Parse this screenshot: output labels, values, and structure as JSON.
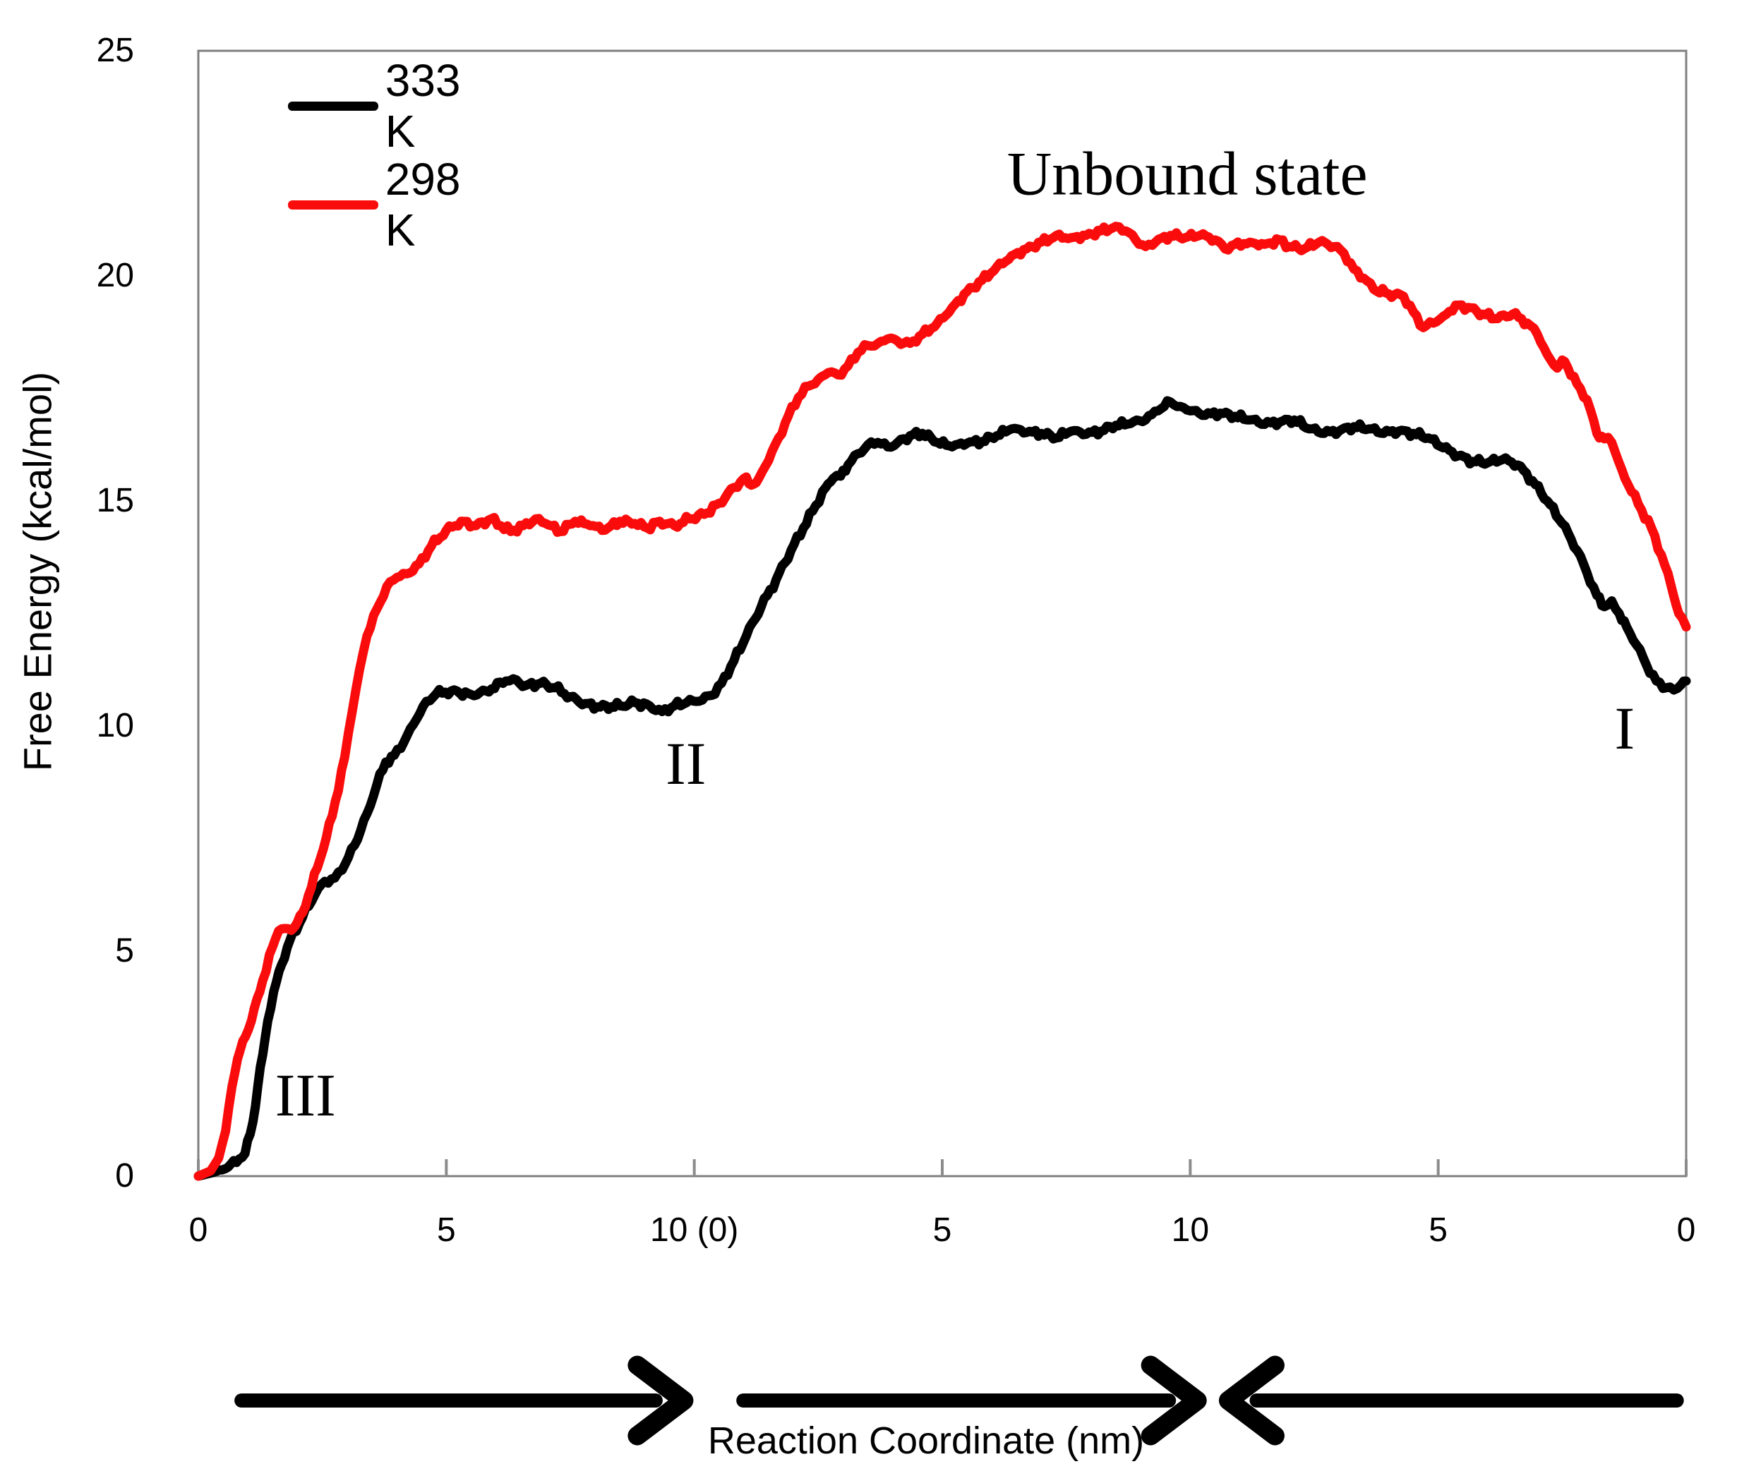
{
  "chart_data": {
    "type": "line",
    "xlabel": "Reaction Coordinate (nm)",
    "ylabel": "Free Energy (kcal/mol)",
    "ylim": [
      0,
      25
    ],
    "x_combined_range": [
      0,
      30
    ],
    "x_axis_note": "piecewise reaction-coordinate axis of three pulling segments",
    "grid": false,
    "axis_color": "#7f7f7f",
    "tick_color": "#8c8c8c",
    "y_ticks": [
      {
        "v": 0,
        "label": "0"
      },
      {
        "v": 5,
        "label": "5"
      },
      {
        "v": 10,
        "label": "10"
      },
      {
        "v": 15,
        "label": "15"
      },
      {
        "v": 20,
        "label": "20"
      },
      {
        "v": 25,
        "label": "25"
      }
    ],
    "x_ticks": [
      {
        "t": 0,
        "label": "0"
      },
      {
        "t": 5,
        "label": "5"
      },
      {
        "t": 10,
        "label": "10 (0)"
      },
      {
        "t": 15,
        "label": "5"
      },
      {
        "t": 20,
        "label": "10"
      },
      {
        "t": 25,
        "label": "5"
      },
      {
        "t": 30,
        "label": "0"
      }
    ],
    "legend": {
      "position": "top-left",
      "items": [
        {
          "label": "333 K",
          "color": "#000000"
        },
        {
          "label": "298 K",
          "color": "#fb0c0c"
        }
      ]
    },
    "series": [
      {
        "name": "333 K",
        "color": "#000000",
        "points": [
          [
            0,
            0
          ],
          [
            0.3,
            0.08
          ],
          [
            0.6,
            0.2
          ],
          [
            0.94,
            0.5
          ],
          [
            1.1,
            1.2
          ],
          [
            1.2,
            2.0
          ],
          [
            1.3,
            2.7
          ],
          [
            1.4,
            3.45
          ],
          [
            1.52,
            4.1
          ],
          [
            1.68,
            4.7
          ],
          [
            1.85,
            5.25
          ],
          [
            2.1,
            5.75
          ],
          [
            2.35,
            6.25
          ],
          [
            2.55,
            6.55
          ],
          [
            2.75,
            6.62
          ],
          [
            2.9,
            6.8
          ],
          [
            3.15,
            7.35
          ],
          [
            3.4,
            8.05
          ],
          [
            3.6,
            8.7
          ],
          [
            3.78,
            9.2
          ],
          [
            3.95,
            9.35
          ],
          [
            4.15,
            9.65
          ],
          [
            4.4,
            10.15
          ],
          [
            4.6,
            10.55
          ],
          [
            4.8,
            10.72
          ],
          [
            5.1,
            10.78
          ],
          [
            5.5,
            10.7
          ],
          [
            5.8,
            10.78
          ],
          [
            6.2,
            11.0
          ],
          [
            6.35,
            11.05
          ],
          [
            6.6,
            10.9
          ],
          [
            6.9,
            10.95
          ],
          [
            7.2,
            10.85
          ],
          [
            7.5,
            10.65
          ],
          [
            7.8,
            10.5
          ],
          [
            8.1,
            10.42
          ],
          [
            8.5,
            10.45
          ],
          [
            8.8,
            10.52
          ],
          [
            9.1,
            10.45
          ],
          [
            9.35,
            10.32
          ],
          [
            9.6,
            10.45
          ],
          [
            9.85,
            10.52
          ],
          [
            10.1,
            10.55
          ],
          [
            10.35,
            10.68
          ],
          [
            10.55,
            10.95
          ],
          [
            10.8,
            11.45
          ],
          [
            11.05,
            12.0
          ],
          [
            11.35,
            12.65
          ],
          [
            11.65,
            13.25
          ],
          [
            11.95,
            13.9
          ],
          [
            12.2,
            14.4
          ],
          [
            12.45,
            14.9
          ],
          [
            12.65,
            15.3
          ],
          [
            12.8,
            15.5
          ],
          [
            12.95,
            15.55
          ],
          [
            13.1,
            15.8
          ],
          [
            13.3,
            16.05
          ],
          [
            13.5,
            16.25
          ],
          [
            13.7,
            16.3
          ],
          [
            13.9,
            16.2
          ],
          [
            14.1,
            16.3
          ],
          [
            14.35,
            16.45
          ],
          [
            14.6,
            16.5
          ],
          [
            14.9,
            16.3
          ],
          [
            15.2,
            16.2
          ],
          [
            15.5,
            16.28
          ],
          [
            15.8,
            16.32
          ],
          [
            16.1,
            16.45
          ],
          [
            16.4,
            16.6
          ],
          [
            16.7,
            16.52
          ],
          [
            17.0,
            16.5
          ],
          [
            17.3,
            16.4
          ],
          [
            17.6,
            16.55
          ],
          [
            17.9,
            16.48
          ],
          [
            18.2,
            16.55
          ],
          [
            18.5,
            16.68
          ],
          [
            18.8,
            16.72
          ],
          [
            19.1,
            16.8
          ],
          [
            19.35,
            17.0
          ],
          [
            19.6,
            17.2
          ],
          [
            19.8,
            17.1
          ],
          [
            20.0,
            17.0
          ],
          [
            20.3,
            16.9
          ],
          [
            20.6,
            16.95
          ],
          [
            20.9,
            16.88
          ],
          [
            21.2,
            16.8
          ],
          [
            21.5,
            16.7
          ],
          [
            21.8,
            16.75
          ],
          [
            22.1,
            16.8
          ],
          [
            22.4,
            16.6
          ],
          [
            22.7,
            16.5
          ],
          [
            23.0,
            16.55
          ],
          [
            23.3,
            16.65
          ],
          [
            23.6,
            16.6
          ],
          [
            23.9,
            16.5
          ],
          [
            24.2,
            16.55
          ],
          [
            24.5,
            16.5
          ],
          [
            24.8,
            16.4
          ],
          [
            25.1,
            16.18
          ],
          [
            25.4,
            16.0
          ],
          [
            25.7,
            15.88
          ],
          [
            26.0,
            15.85
          ],
          [
            26.3,
            15.92
          ],
          [
            26.6,
            15.8
          ],
          [
            26.9,
            15.45
          ],
          [
            27.2,
            15.0
          ],
          [
            27.5,
            14.5
          ],
          [
            27.8,
            13.9
          ],
          [
            28.0,
            13.4
          ],
          [
            28.2,
            12.9
          ],
          [
            28.35,
            12.65
          ],
          [
            28.5,
            12.78
          ],
          [
            28.65,
            12.5
          ],
          [
            28.8,
            12.2
          ],
          [
            29.0,
            11.8
          ],
          [
            29.2,
            11.35
          ],
          [
            29.4,
            11.0
          ],
          [
            29.6,
            10.85
          ],
          [
            29.75,
            10.8
          ],
          [
            29.9,
            10.92
          ],
          [
            30,
            11.0
          ]
        ]
      },
      {
        "name": "298 K",
        "color": "#fb0c0c",
        "points": [
          [
            0,
            0
          ],
          [
            0.25,
            0.12
          ],
          [
            0.41,
            0.4
          ],
          [
            0.55,
            1.0
          ],
          [
            0.68,
            2.0
          ],
          [
            0.79,
            2.6
          ],
          [
            0.95,
            3.1
          ],
          [
            1.07,
            3.45
          ],
          [
            1.3,
            4.35
          ],
          [
            1.5,
            5.1
          ],
          [
            1.62,
            5.45
          ],
          [
            1.8,
            5.5
          ],
          [
            1.95,
            5.55
          ],
          [
            2.1,
            5.85
          ],
          [
            2.4,
            6.85
          ],
          [
            2.7,
            8.0
          ],
          [
            2.95,
            9.3
          ],
          [
            3.1,
            10.3
          ],
          [
            3.25,
            11.25
          ],
          [
            3.4,
            12.0
          ],
          [
            3.6,
            12.6
          ],
          [
            3.8,
            13.1
          ],
          [
            4.0,
            13.3
          ],
          [
            4.2,
            13.38
          ],
          [
            4.45,
            13.6
          ],
          [
            4.7,
            14.0
          ],
          [
            5.0,
            14.35
          ],
          [
            5.3,
            14.55
          ],
          [
            5.6,
            14.45
          ],
          [
            5.9,
            14.6
          ],
          [
            6.1,
            14.45
          ],
          [
            6.3,
            14.32
          ],
          [
            6.55,
            14.45
          ],
          [
            6.8,
            14.6
          ],
          [
            7.0,
            14.5
          ],
          [
            7.3,
            14.32
          ],
          [
            7.6,
            14.55
          ],
          [
            7.9,
            14.45
          ],
          [
            8.2,
            14.35
          ],
          [
            8.5,
            14.55
          ],
          [
            8.8,
            14.5
          ],
          [
            9.05,
            14.4
          ],
          [
            9.3,
            14.55
          ],
          [
            9.6,
            14.45
          ],
          [
            9.9,
            14.6
          ],
          [
            10.2,
            14.7
          ],
          [
            10.5,
            14.95
          ],
          [
            10.8,
            15.3
          ],
          [
            11.0,
            15.5
          ],
          [
            11.15,
            15.35
          ],
          [
            11.3,
            15.5
          ],
          [
            11.5,
            15.9
          ],
          [
            11.7,
            16.4
          ],
          [
            11.9,
            16.9
          ],
          [
            12.1,
            17.3
          ],
          [
            12.3,
            17.55
          ],
          [
            12.5,
            17.7
          ],
          [
            12.7,
            17.85
          ],
          [
            12.9,
            17.8
          ],
          [
            13.1,
            18.0
          ],
          [
            13.3,
            18.3
          ],
          [
            13.5,
            18.45
          ],
          [
            13.7,
            18.5
          ],
          [
            13.9,
            18.6
          ],
          [
            14.1,
            18.55
          ],
          [
            14.35,
            18.5
          ],
          [
            14.6,
            18.7
          ],
          [
            14.9,
            18.95
          ],
          [
            15.2,
            19.3
          ],
          [
            15.5,
            19.65
          ],
          [
            15.8,
            19.9
          ],
          [
            16.1,
            20.2
          ],
          [
            16.4,
            20.45
          ],
          [
            16.7,
            20.6
          ],
          [
            17.0,
            20.75
          ],
          [
            17.3,
            20.9
          ],
          [
            17.6,
            20.85
          ],
          [
            17.9,
            20.9
          ],
          [
            18.2,
            21.0
          ],
          [
            18.5,
            21.1
          ],
          [
            18.7,
            21.0
          ],
          [
            18.9,
            20.8
          ],
          [
            19.1,
            20.65
          ],
          [
            19.3,
            20.75
          ],
          [
            19.6,
            20.9
          ],
          [
            19.9,
            20.85
          ],
          [
            20.2,
            20.9
          ],
          [
            20.5,
            20.8
          ],
          [
            20.7,
            20.6
          ],
          [
            20.9,
            20.7
          ],
          [
            21.2,
            20.75
          ],
          [
            21.5,
            20.7
          ],
          [
            21.8,
            20.8
          ],
          [
            22.0,
            20.65
          ],
          [
            22.3,
            20.6
          ],
          [
            22.6,
            20.75
          ],
          [
            22.9,
            20.65
          ],
          [
            23.1,
            20.5
          ],
          [
            23.3,
            20.15
          ],
          [
            23.5,
            19.95
          ],
          [
            23.7,
            19.7
          ],
          [
            24.0,
            19.6
          ],
          [
            24.3,
            19.55
          ],
          [
            24.5,
            19.2
          ],
          [
            24.7,
            18.85
          ],
          [
            24.9,
            18.95
          ],
          [
            25.1,
            19.1
          ],
          [
            25.35,
            19.35
          ],
          [
            25.6,
            19.3
          ],
          [
            25.9,
            19.15
          ],
          [
            26.2,
            19.05
          ],
          [
            26.5,
            19.15
          ],
          [
            26.8,
            18.95
          ],
          [
            27.0,
            18.7
          ],
          [
            27.2,
            18.25
          ],
          [
            27.4,
            17.95
          ],
          [
            27.55,
            18.1
          ],
          [
            27.8,
            17.6
          ],
          [
            28.0,
            17.25
          ],
          [
            28.2,
            16.5
          ],
          [
            28.35,
            16.38
          ],
          [
            28.5,
            16.3
          ],
          [
            28.7,
            15.7
          ],
          [
            28.9,
            15.2
          ],
          [
            29.1,
            14.8
          ],
          [
            29.3,
            14.4
          ],
          [
            29.5,
            13.8
          ],
          [
            29.7,
            13.1
          ],
          [
            29.85,
            12.5
          ],
          [
            30,
            12.2
          ]
        ]
      }
    ],
    "annotations": [
      {
        "label": "Unbound state",
        "t": 19.94,
        "v": 22.26,
        "kind": "state"
      },
      {
        "label": "I",
        "t": 28.76,
        "v": 9.95,
        "kind": "numeral"
      },
      {
        "label": "II",
        "t": 9.83,
        "v": 9.17,
        "kind": "numeral"
      },
      {
        "label": "III",
        "t": 2.16,
        "v": 1.8,
        "kind": "numeral"
      }
    ],
    "arrows": {
      "color": "#000000",
      "items": [
        {
          "from_t": 0.87,
          "to_t": 9.79,
          "direction": "right"
        },
        {
          "from_t": 10.99,
          "to_t": 20.14,
          "direction": "right"
        },
        {
          "from_t": 29.81,
          "to_t": 20.77,
          "direction": "left"
        }
      ]
    }
  }
}
